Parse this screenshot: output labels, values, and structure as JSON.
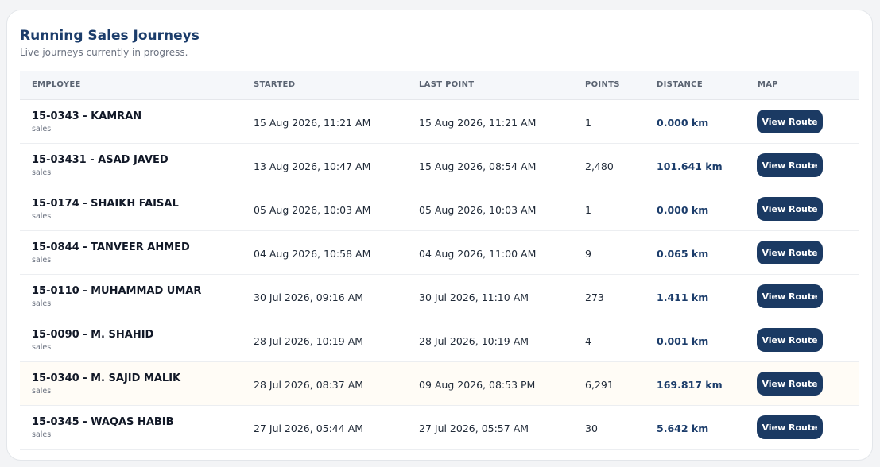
{
  "header": {
    "title": "Running Sales Journeys",
    "subtitle": "Live journeys currently in progress."
  },
  "table": {
    "columns": [
      "EMPLOYEE",
      "STARTED",
      "LAST POINT",
      "POINTS",
      "DISTANCE",
      "MAP"
    ],
    "rows": [
      {
        "employee": "15-0343 - KAMRAN",
        "role": "sales",
        "started": "15 Aug 2026, 11:21 AM",
        "last_point": "15 Aug 2026, 11:21 AM",
        "points": "1",
        "distance": "0.000 km",
        "map": "View Route"
      },
      {
        "employee": "15-03431 - ASAD JAVED",
        "role": "sales",
        "started": "13 Aug 2026, 10:47 AM",
        "last_point": "15 Aug 2026, 08:54 AM",
        "points": "2,480",
        "distance": "101.641 km",
        "map": "View Route"
      },
      {
        "employee": "15-0174 - SHAIKH FAISAL",
        "role": "sales",
        "started": "05 Aug 2026, 10:03 AM",
        "last_point": "05 Aug 2026, 10:03 AM",
        "points": "1",
        "distance": "0.000 km",
        "map": "View Route"
      },
      {
        "employee": "15-0844 - TANVEER AHMED",
        "role": "sales",
        "started": "04 Aug 2026, 10:58 AM",
        "last_point": "04 Aug 2026, 11:00 AM",
        "points": "9",
        "distance": "0.065 km",
        "map": "View Route"
      },
      {
        "employee": "15-0110 - MUHAMMAD UMAR",
        "role": "sales",
        "started": "30 Jul 2026, 09:16 AM",
        "last_point": "30 Jul 2026, 11:10 AM",
        "points": "273",
        "distance": "1.411 km",
        "map": "View Route"
      },
      {
        "employee": "15-0090 - M. SHAHID",
        "role": "sales",
        "started": "28 Jul 2026, 10:19 AM",
        "last_point": "28 Jul 2026, 10:19 AM",
        "points": "4",
        "distance": "0.001 km",
        "map": "View Route"
      },
      {
        "employee": "15-0340 - M. SAJID MALIK",
        "role": "sales",
        "started": "28 Jul 2026, 08:37 AM",
        "last_point": "09 Aug 2026, 08:53 PM",
        "points": "6,291",
        "distance": "169.817 km",
        "map": "View Route"
      },
      {
        "employee": "15-0345 - WAQAS HABIB",
        "role": "sales",
        "started": "27 Jul 2026, 05:44 AM",
        "last_point": "27 Jul 2026, 05:57 AM",
        "points": "30",
        "distance": "5.642 km",
        "map": "View Route"
      }
    ]
  }
}
